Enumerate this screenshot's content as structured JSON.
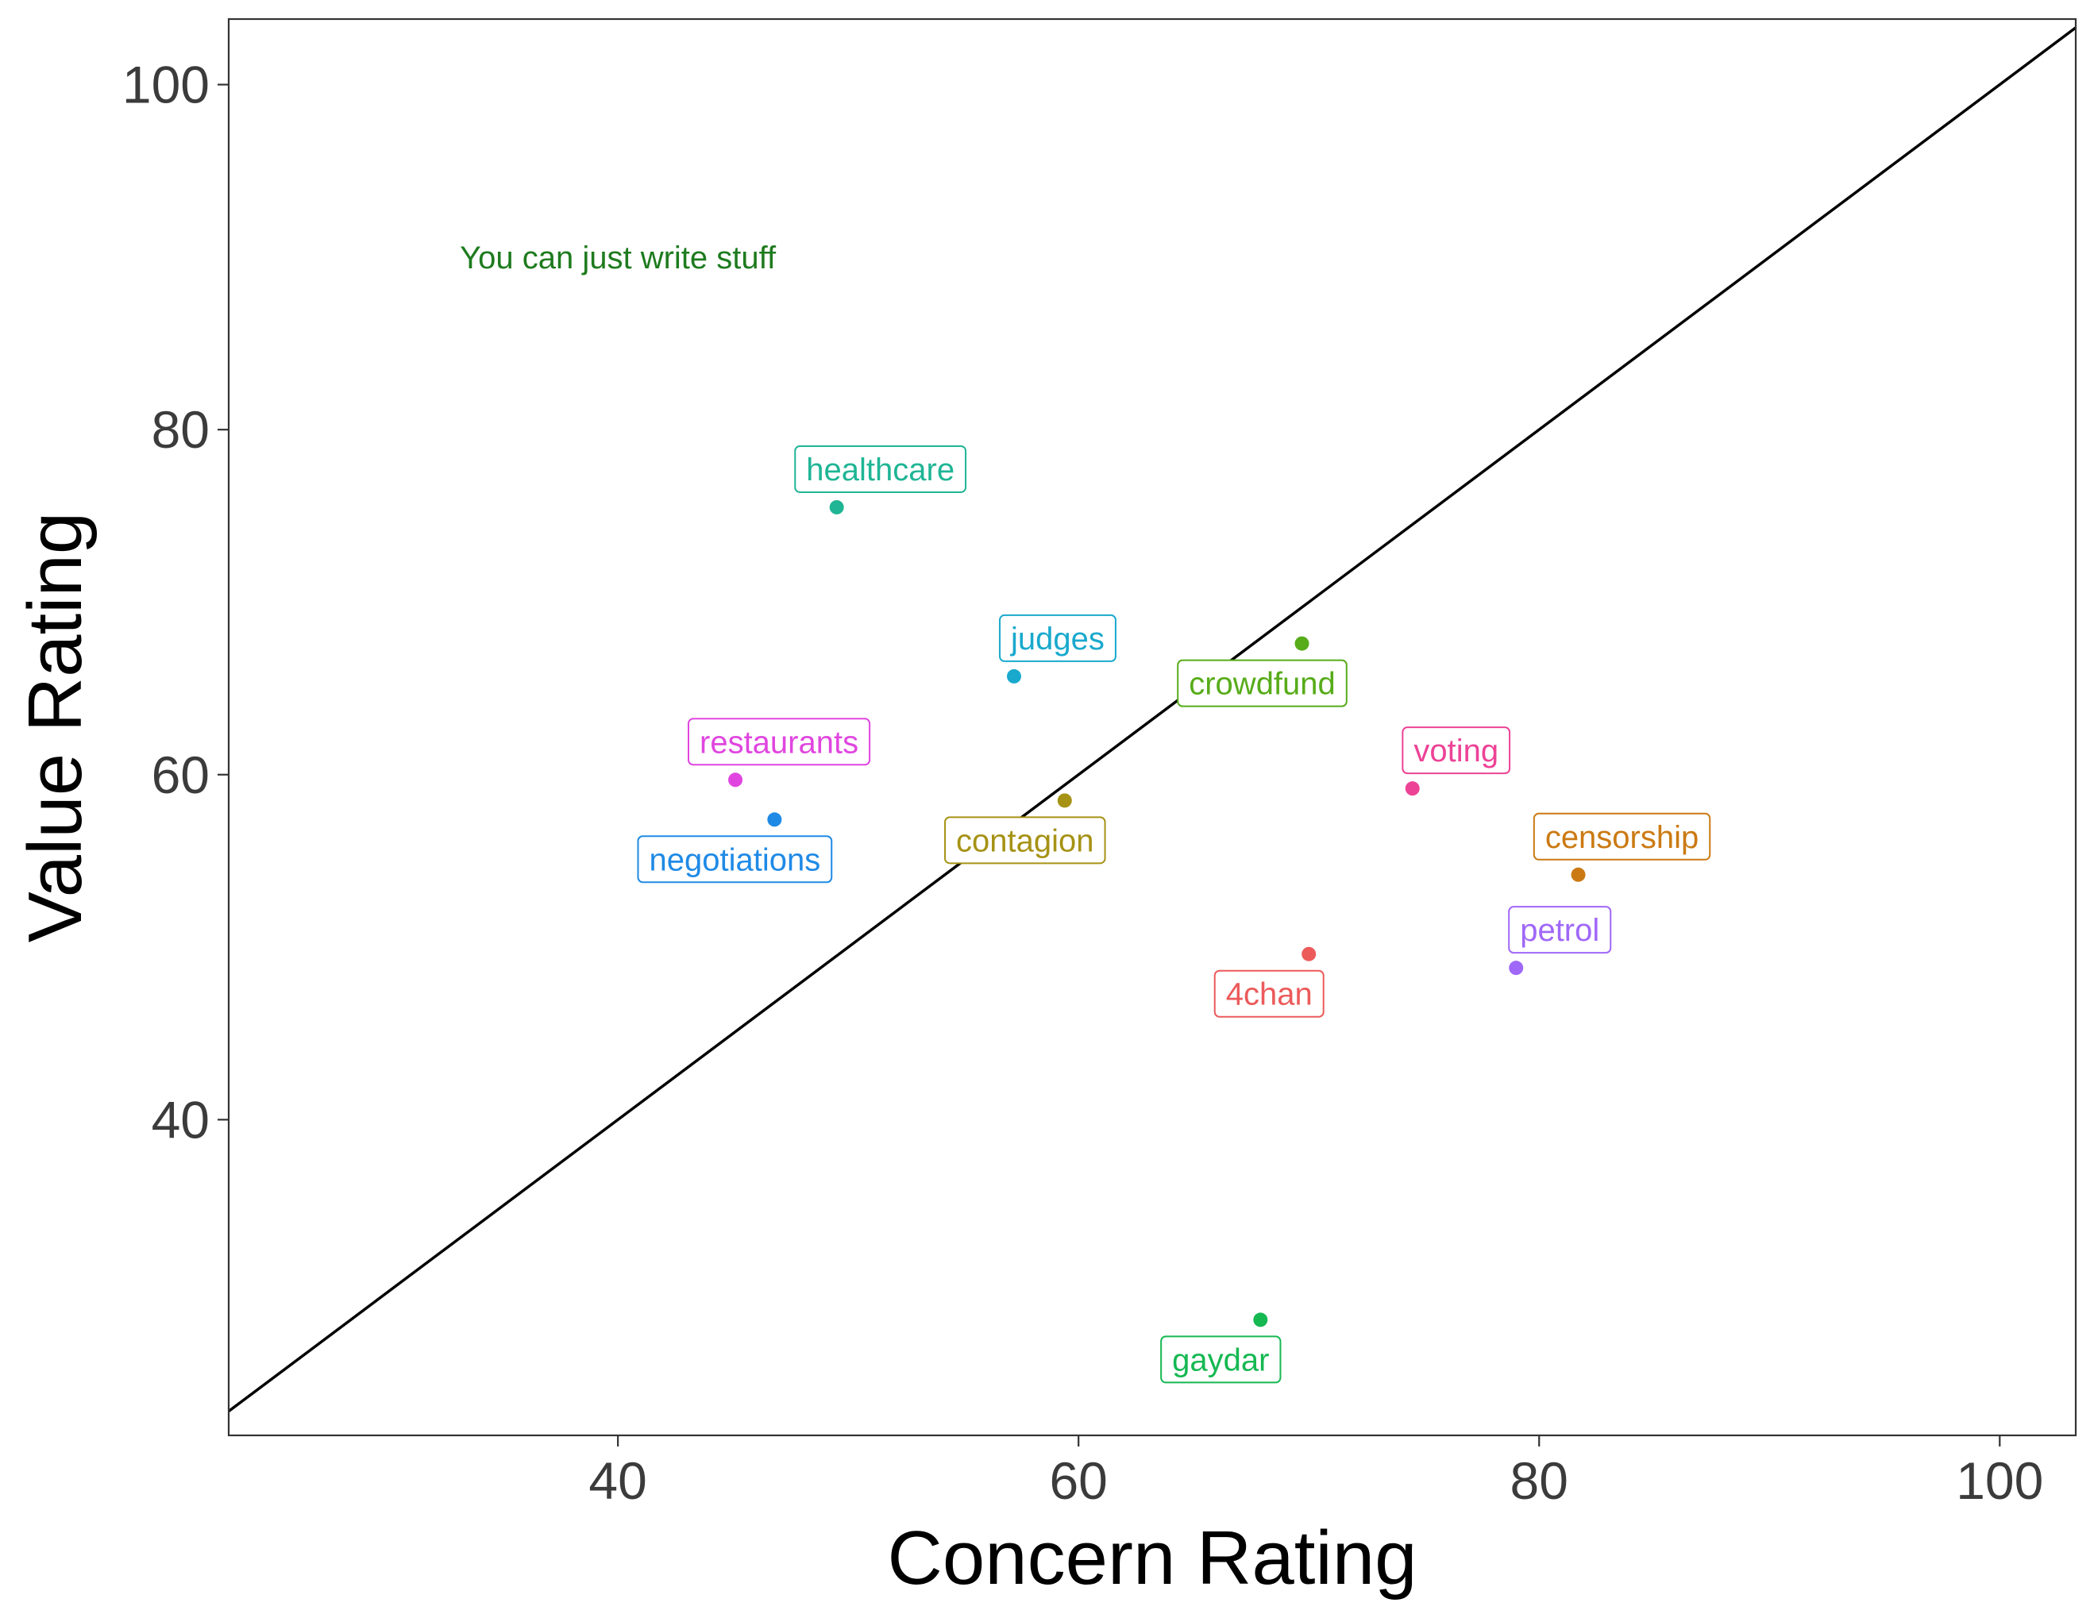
{
  "chart_data": {
    "type": "scatter",
    "title": "",
    "xlabel": "Concern Rating",
    "ylabel": "Value Rating",
    "xlim": [
      23.1,
      103.3
    ],
    "ylim": [
      21.7,
      103.8
    ],
    "xticks": [
      40,
      60,
      80,
      100
    ],
    "yticks": [
      40,
      60,
      80,
      100
    ],
    "grid": false,
    "reference_line": "y = x",
    "annotation": {
      "text": "You can just write stuff",
      "x": 40,
      "y": 90,
      "color": "#1e7b1e"
    },
    "points": [
      {
        "label": "healthcare",
        "x": 49.5,
        "y": 75.5,
        "color": "#1fb595",
        "label_pos": "above"
      },
      {
        "label": "judges",
        "x": 57.2,
        "y": 65.7,
        "color": "#19a9cd",
        "label_pos": "above"
      },
      {
        "label": "crowdfund",
        "x": 69.7,
        "y": 67.6,
        "color": "#57ac1a",
        "label_pos": "below"
      },
      {
        "label": "restaurants",
        "x": 45.1,
        "y": 59.7,
        "color": "#e046df",
        "label_pos": "above"
      },
      {
        "label": "negotiations",
        "x": 46.8,
        "y": 57.4,
        "color": "#1f8ae6",
        "label_pos": "below"
      },
      {
        "label": "contagion",
        "x": 59.4,
        "y": 58.5,
        "color": "#a69215",
        "label_pos": "below"
      },
      {
        "label": "voting",
        "x": 74.5,
        "y": 59.2,
        "color": "#ec4397",
        "label_pos": "above"
      },
      {
        "label": "censorship",
        "x": 81.7,
        "y": 54.2,
        "color": "#cb7a13",
        "label_pos": "above"
      },
      {
        "label": "petrol",
        "x": 79.0,
        "y": 48.8,
        "color": "#a068f7",
        "label_pos": "above"
      },
      {
        "label": "4chan",
        "x": 70.0,
        "y": 49.6,
        "color": "#ec5a5a",
        "label_pos": "below"
      },
      {
        "label": "gaydar",
        "x": 67.9,
        "y": 28.4,
        "color": "#16b852",
        "label_pos": "below"
      }
    ]
  }
}
